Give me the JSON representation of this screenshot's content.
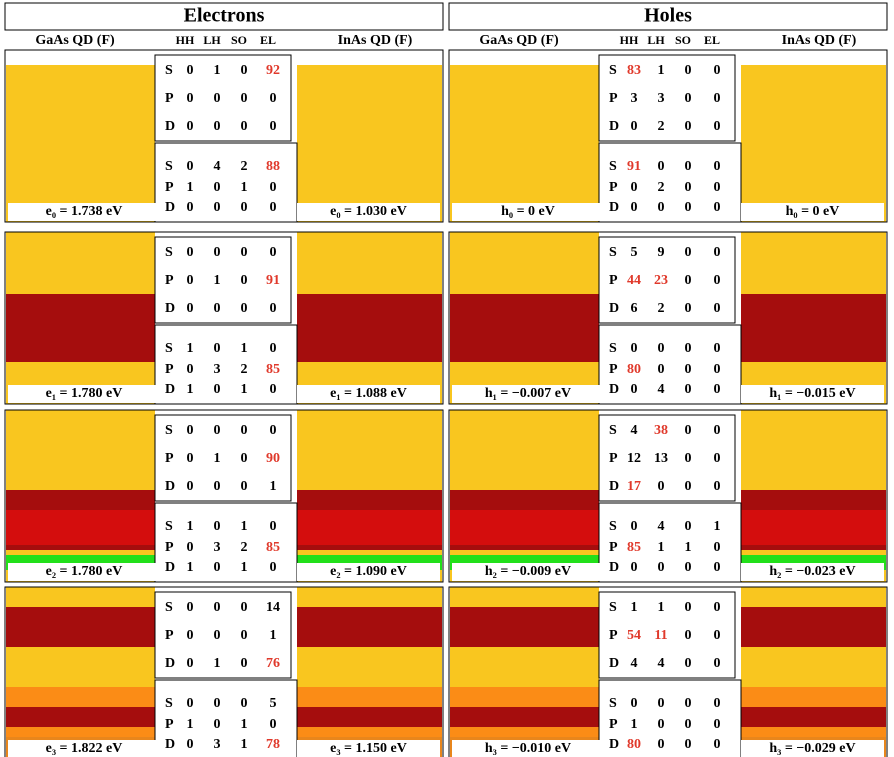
{
  "highlight_color": "#e0392b",
  "columns": [
    {
      "title": "Electrons",
      "headers": [
        "GaAs QD (F)",
        "InAs QD (F)"
      ],
      "bands": [
        "HH",
        "LH",
        "SO",
        "EL"
      ],
      "orbitals": [
        "S",
        "P",
        "D"
      ],
      "panels": [
        {
          "labels": [
            "e₀ = 1.738 eV",
            "e₀ = 1.030 eV"
          ],
          "tables": [
            {
              "rows": [
                [
                  0,
                  1,
                  0,
                  92
                ],
                [
                  0,
                  0,
                  0,
                  0
                ],
                [
                  0,
                  0,
                  0,
                  0
                ]
              ],
              "highlight": [
                [
                  0,
                  3
                ]
              ]
            },
            {
              "rows": [
                [
                  0,
                  4,
                  2,
                  88
                ],
                [
                  1,
                  0,
                  1,
                  0
                ],
                [
                  0,
                  0,
                  0,
                  0
                ]
              ],
              "highlight": [
                [
                  0,
                  3
                ]
              ]
            }
          ]
        },
        {
          "labels": [
            "e₁ = 1.780 eV",
            "e₁ = 1.088 eV"
          ],
          "tables": [
            {
              "rows": [
                [
                  0,
                  0,
                  0,
                  0
                ],
                [
                  0,
                  1,
                  0,
                  91
                ],
                [
                  0,
                  0,
                  0,
                  0
                ]
              ],
              "highlight": [
                [
                  1,
                  3
                ]
              ]
            },
            {
              "rows": [
                [
                  1,
                  0,
                  1,
                  0
                ],
                [
                  0,
                  3,
                  2,
                  85
                ],
                [
                  1,
                  0,
                  1,
                  0
                ]
              ],
              "highlight": [
                [
                  1,
                  3
                ]
              ]
            }
          ]
        },
        {
          "labels": [
            "e₂ = 1.780 eV",
            "e₂ = 1.090 eV"
          ],
          "tables": [
            {
              "rows": [
                [
                  0,
                  0,
                  0,
                  0
                ],
                [
                  0,
                  1,
                  0,
                  90
                ],
                [
                  0,
                  0,
                  0,
                  1
                ]
              ],
              "highlight": [
                [
                  1,
                  3
                ]
              ]
            },
            {
              "rows": [
                [
                  1,
                  0,
                  1,
                  0
                ],
                [
                  0,
                  3,
                  2,
                  85
                ],
                [
                  1,
                  0,
                  1,
                  0
                ]
              ],
              "highlight": [
                [
                  1,
                  3
                ]
              ]
            }
          ]
        },
        {
          "labels": [
            "e₃ = 1.822 eV",
            "e₃ = 1.150 eV"
          ],
          "tables": [
            {
              "rows": [
                [
                  0,
                  0,
                  0,
                  14
                ],
                [
                  0,
                  0,
                  0,
                  1
                ],
                [
                  0,
                  1,
                  0,
                  76
                ]
              ],
              "highlight": [
                [
                  2,
                  3
                ]
              ]
            },
            {
              "rows": [
                [
                  0,
                  0,
                  0,
                  5
                ],
                [
                  1,
                  0,
                  1,
                  0
                ],
                [
                  0,
                  3,
                  1,
                  78
                ]
              ],
              "highlight": [
                [
                  2,
                  3
                ]
              ]
            }
          ]
        }
      ]
    },
    {
      "title": "Holes",
      "headers": [
        "GaAs QD (F)",
        "InAs QD (F)"
      ],
      "bands": [
        "HH",
        "LH",
        "SO",
        "EL"
      ],
      "orbitals": [
        "S",
        "P",
        "D"
      ],
      "panels": [
        {
          "labels": [
            "h₀ = 0 eV",
            "h₀ = 0 eV"
          ],
          "tables": [
            {
              "rows": [
                [
                  83,
                  1,
                  0,
                  0
                ],
                [
                  3,
                  3,
                  0,
                  0
                ],
                [
                  0,
                  2,
                  0,
                  0
                ]
              ],
              "highlight": [
                [
                  0,
                  0
                ]
              ]
            },
            {
              "rows": [
                [
                  91,
                  0,
                  0,
                  0
                ],
                [
                  0,
                  2,
                  0,
                  0
                ],
                [
                  0,
                  0,
                  0,
                  0
                ]
              ],
              "highlight": [
                [
                  0,
                  0
                ]
              ]
            }
          ]
        },
        {
          "labels": [
            "h₁ = −0.007 eV",
            "h₁ = −0.015 eV"
          ],
          "tables": [
            {
              "rows": [
                [
                  5,
                  9,
                  0,
                  0
                ],
                [
                  44,
                  23,
                  0,
                  0
                ],
                [
                  6,
                  2,
                  0,
                  0
                ]
              ],
              "highlight": [
                [
                  1,
                  0
                ],
                [
                  1,
                  1
                ]
              ]
            },
            {
              "rows": [
                [
                  0,
                  0,
                  0,
                  0
                ],
                [
                  80,
                  0,
                  0,
                  0
                ],
                [
                  0,
                  4,
                  0,
                  0
                ]
              ],
              "highlight": [
                [
                  1,
                  0
                ]
              ]
            }
          ]
        },
        {
          "labels": [
            "h₂ = −0.009 eV",
            "h₂ = −0.023 eV"
          ],
          "tables": [
            {
              "rows": [
                [
                  4,
                  38,
                  0,
                  0
                ],
                [
                  12,
                  13,
                  0,
                  0
                ],
                [
                  17,
                  0,
                  0,
                  0
                ]
              ],
              "highlight": [
                [
                  0,
                  1
                ],
                [
                  2,
                  0
                ]
              ]
            },
            {
              "rows": [
                [
                  0,
                  4,
                  0,
                  1
                ],
                [
                  85,
                  1,
                  1,
                  0
                ],
                [
                  0,
                  0,
                  0,
                  0
                ]
              ],
              "highlight": [
                [
                  1,
                  0
                ]
              ]
            }
          ]
        },
        {
          "labels": [
            "h₃ = −0.010 eV",
            "h₃ = −0.029 eV"
          ],
          "tables": [
            {
              "rows": [
                [
                  1,
                  1,
                  0,
                  0
                ],
                [
                  54,
                  11,
                  0,
                  0
                ],
                [
                  4,
                  4,
                  0,
                  0
                ]
              ],
              "highlight": [
                [
                  1,
                  0
                ],
                [
                  1,
                  1
                ]
              ]
            },
            {
              "rows": [
                [
                  0,
                  0,
                  0,
                  0
                ],
                [
                  1,
                  0,
                  0,
                  0
                ],
                [
                  80,
                  0,
                  0,
                  0
                ]
              ],
              "highlight": [
                [
                  2,
                  0
                ]
              ]
            }
          ]
        }
      ]
    }
  ]
}
